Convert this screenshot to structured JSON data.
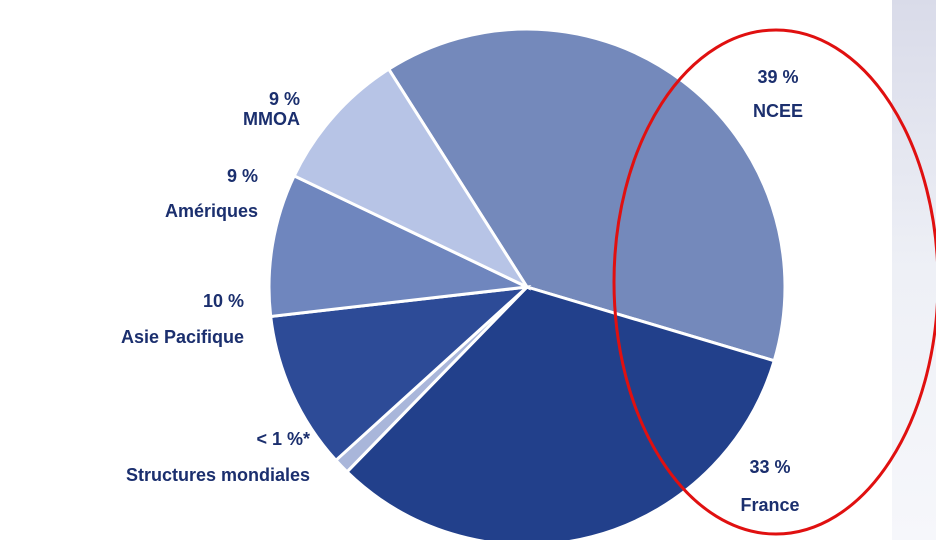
{
  "chart_data": {
    "type": "pie",
    "categories": [
      "NCEE",
      "France",
      "Structures mondiales",
      "Asie Pacifique",
      "Amériques",
      "MMOA"
    ],
    "values": [
      39,
      33,
      1,
      10,
      9,
      9
    ],
    "value_labels": [
      "39 %",
      "33 %",
      "< 1 %*",
      "10 %",
      "9 %",
      "9 %"
    ],
    "colors": [
      "#7489bb",
      "#22408b",
      "#a9b6da",
      "#2d4b97",
      "#6f86be",
      "#b7c4e6"
    ]
  }
}
